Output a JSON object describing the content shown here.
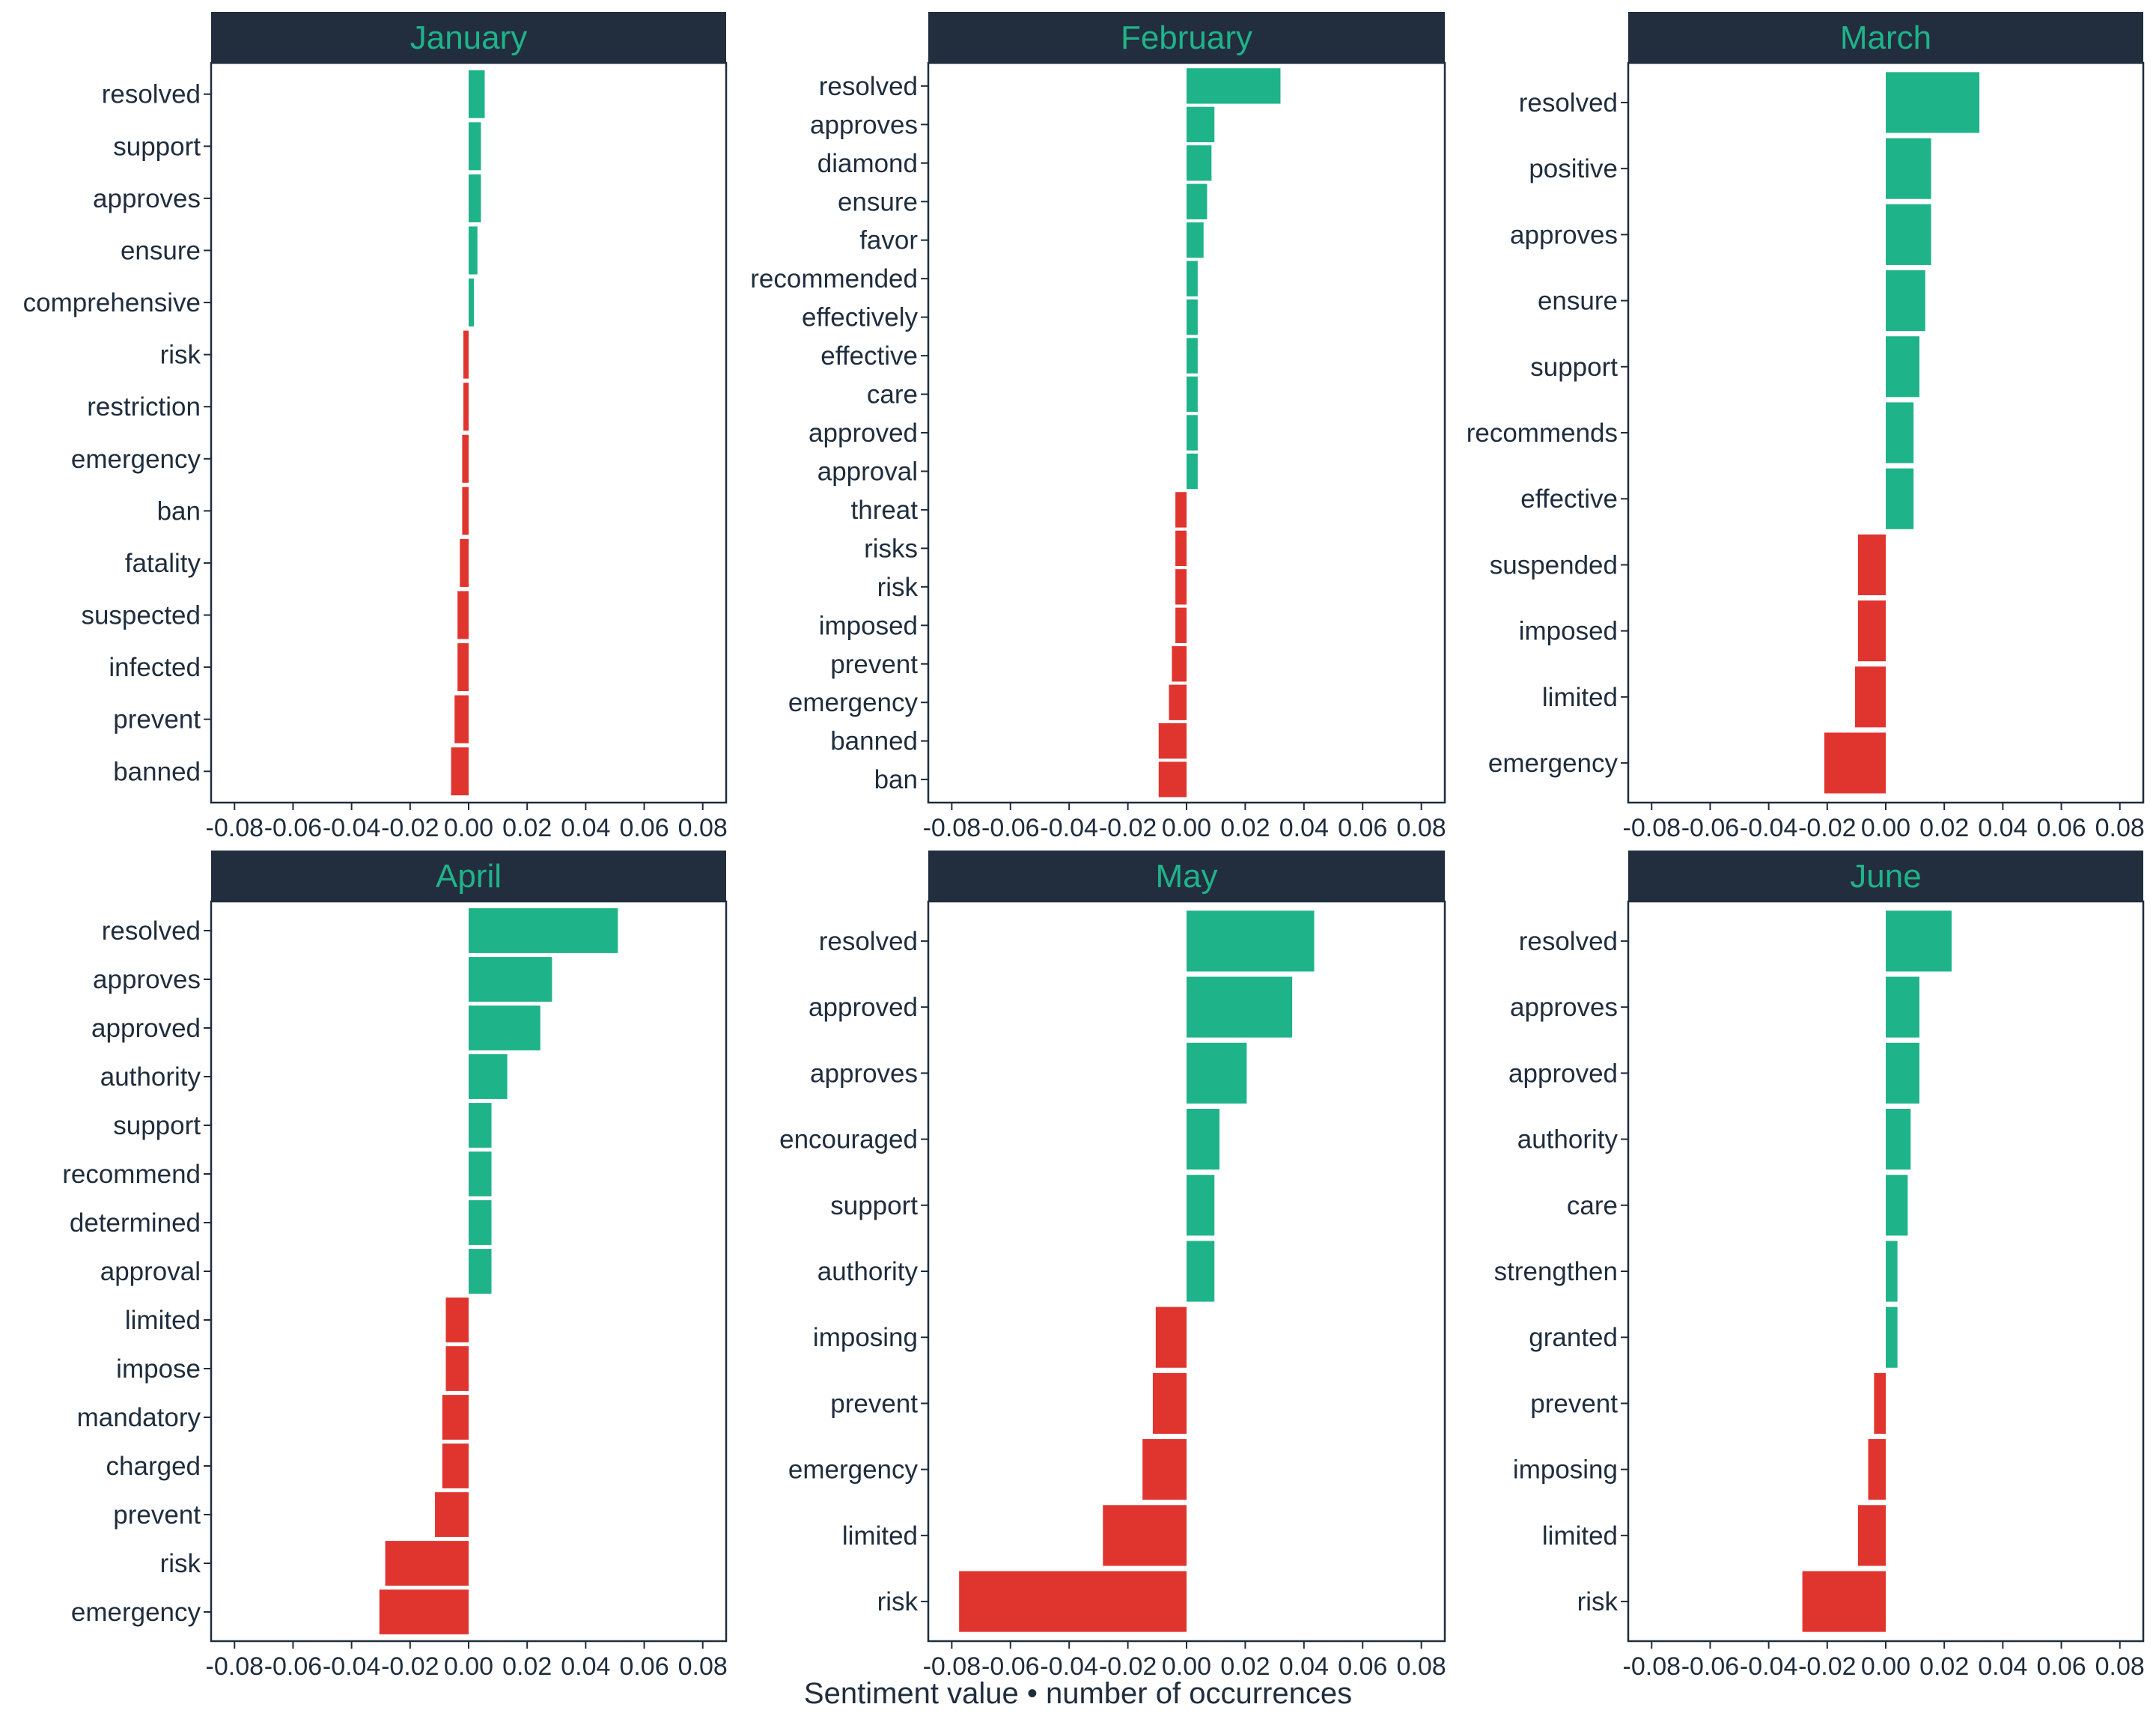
{
  "chart_data": {
    "type": "bar",
    "orientation": "horizontal",
    "xlabel": "Sentiment value • number of occurrences",
    "xlim": [
      -0.088,
      0.088
    ],
    "xticks": [
      -0.08,
      -0.06,
      -0.04,
      -0.02,
      0.0,
      0.02,
      0.04,
      0.06,
      0.08
    ],
    "xtick_labels": [
      "-0.08",
      "-0.06",
      "-0.04",
      "-0.02",
      "0.00",
      "0.02",
      "0.04",
      "0.06",
      "0.08"
    ],
    "colors": {
      "positive": "#1fb38a",
      "negative": "#e0352f",
      "strip_bg": "#222e3e",
      "strip_text": "#1fb38a",
      "axis": "#1f2d3d"
    },
    "panels": [
      {
        "title": "January",
        "categories": [
          "resolved",
          "support",
          "approves",
          "ensure",
          "comprehensive",
          "risk",
          "restriction",
          "emergency",
          "ban",
          "fatality",
          "suspected",
          "infected",
          "prevent",
          "banned"
        ],
        "values": [
          0.0055,
          0.0042,
          0.0042,
          0.003,
          0.0018,
          -0.0018,
          -0.0018,
          -0.0022,
          -0.0022,
          -0.003,
          -0.0038,
          -0.0038,
          -0.0048,
          -0.006
        ]
      },
      {
        "title": "February",
        "categories": [
          "resolved",
          "approves",
          "diamond",
          "ensure",
          "favor",
          "recommended",
          "effectively",
          "effective",
          "care",
          "approved",
          "approval",
          "threat",
          "risks",
          "risk",
          "imposed",
          "prevent",
          "emergency",
          "banned",
          "ban"
        ],
        "values": [
          0.032,
          0.0095,
          0.0085,
          0.007,
          0.0058,
          0.0038,
          0.0038,
          0.0038,
          0.0038,
          0.0038,
          0.0038,
          -0.0038,
          -0.0038,
          -0.0038,
          -0.0038,
          -0.005,
          -0.006,
          -0.0095,
          -0.0095
        ]
      },
      {
        "title": "March",
        "categories": [
          "resolved",
          "positive",
          "approves",
          "ensure",
          "support",
          "recommends",
          "effective",
          "suspended",
          "imposed",
          "limited",
          "emergency"
        ],
        "values": [
          0.032,
          0.0155,
          0.0155,
          0.0135,
          0.0115,
          0.0095,
          0.0095,
          -0.0095,
          -0.0095,
          -0.0105,
          -0.021
        ]
      },
      {
        "title": "April",
        "categories": [
          "resolved",
          "approves",
          "approved",
          "authority",
          "support",
          "recommend",
          "determined",
          "approval",
          "limited",
          "impose",
          "mandatory",
          "charged",
          "prevent",
          "risk",
          "emergency"
        ],
        "values": [
          0.051,
          0.0285,
          0.0245,
          0.0132,
          0.0078,
          0.0078,
          0.0078,
          0.0078,
          -0.0078,
          -0.0078,
          -0.009,
          -0.009,
          -0.0115,
          -0.0285,
          -0.0305
        ]
      },
      {
        "title": "May",
        "categories": [
          "resolved",
          "approved",
          "approves",
          "encouraged",
          "support",
          "authority",
          "imposing",
          "prevent",
          "emergency",
          "limited",
          "risk"
        ],
        "values": [
          0.0435,
          0.036,
          0.0205,
          0.0112,
          0.0095,
          0.0095,
          -0.0105,
          -0.0115,
          -0.015,
          -0.0285,
          -0.0775
        ]
      },
      {
        "title": "June",
        "categories": [
          "resolved",
          "approves",
          "approved",
          "authority",
          "care",
          "strengthen",
          "granted",
          "prevent",
          "imposing",
          "limited",
          "risk"
        ],
        "values": [
          0.0225,
          0.0115,
          0.0115,
          0.0085,
          0.0075,
          0.004,
          0.004,
          -0.004,
          -0.006,
          -0.0095,
          -0.0285
        ]
      }
    ]
  }
}
